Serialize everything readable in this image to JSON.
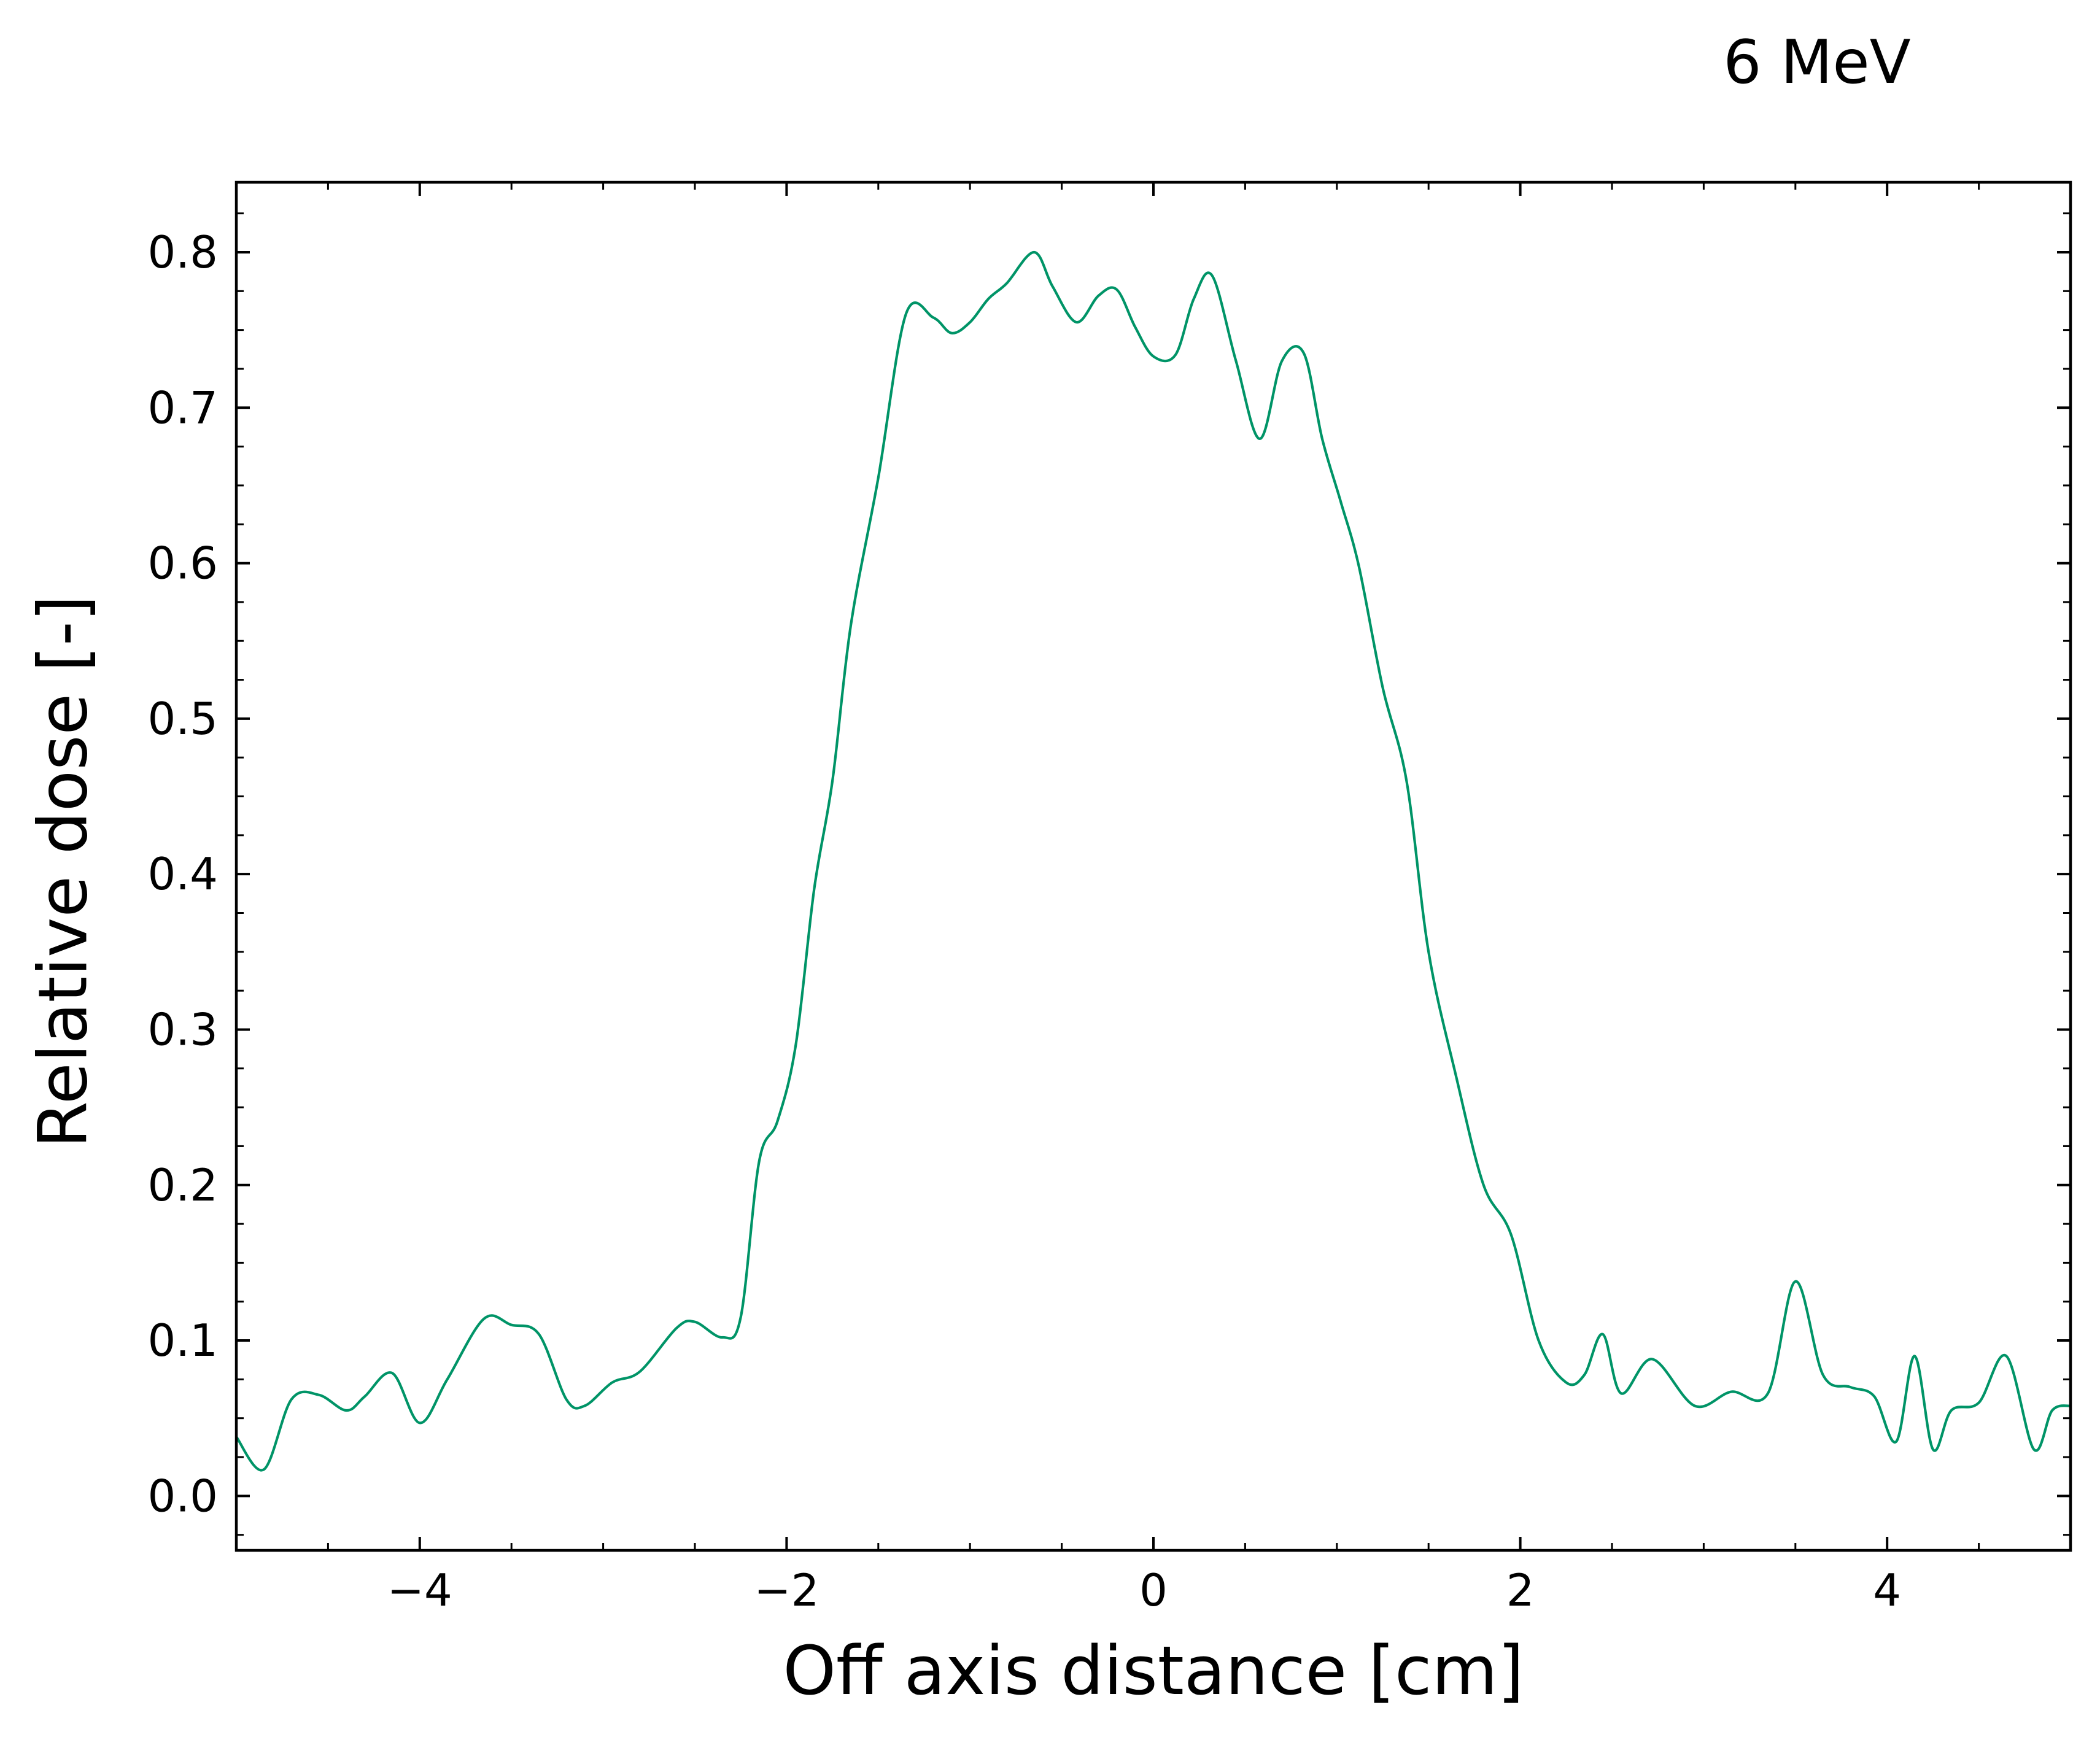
{
  "chart_data": {
    "type": "line",
    "title": "6 MeV",
    "xlabel": "Off axis distance [cm]",
    "ylabel": "Relative dose [-]",
    "xlim": [
      -5,
      5
    ],
    "ylim": [
      -0.035,
      0.845
    ],
    "grid": false,
    "legend": "none",
    "x_ticks": [
      {
        "value": -4,
        "label": "−4"
      },
      {
        "value": -2,
        "label": "−2"
      },
      {
        "value": 0,
        "label": "0"
      },
      {
        "value": 2,
        "label": "2"
      },
      {
        "value": 4,
        "label": "4"
      }
    ],
    "y_ticks": [
      {
        "value": 0.0,
        "label": "0.0"
      },
      {
        "value": 0.1,
        "label": "0.1"
      },
      {
        "value": 0.2,
        "label": "0.2"
      },
      {
        "value": 0.3,
        "label": "0.3"
      },
      {
        "value": 0.4,
        "label": "0.4"
      },
      {
        "value": 0.5,
        "label": "0.5"
      },
      {
        "value": 0.6,
        "label": "0.6"
      },
      {
        "value": 0.7,
        "label": "0.7"
      },
      {
        "value": 0.8,
        "label": "0.8"
      }
    ],
    "x_minor_step": 0.5,
    "y_minor_step": 0.025,
    "series": [
      {
        "color": "#009467",
        "x": [
          -5.0,
          -4.85,
          -4.7,
          -4.55,
          -4.4,
          -4.3,
          -4.15,
          -4.0,
          -3.85,
          -3.65,
          -3.5,
          -3.35,
          -3.2,
          -3.1,
          -2.95,
          -2.8,
          -2.6,
          -2.5,
          -2.35,
          -2.25,
          -2.15,
          -2.05,
          -1.95,
          -1.85,
          -1.75,
          -1.65,
          -1.5,
          -1.35,
          -1.2,
          -1.1,
          -1.0,
          -0.9,
          -0.8,
          -0.65,
          -0.55,
          -0.42,
          -0.3,
          -0.2,
          -0.1,
          0.0,
          0.12,
          0.22,
          0.32,
          0.45,
          0.58,
          0.7,
          0.82,
          0.92,
          1.02,
          1.12,
          1.25,
          1.38,
          1.5,
          1.65,
          1.8,
          1.95,
          2.1,
          2.25,
          2.35,
          2.45,
          2.55,
          2.72,
          2.95,
          3.15,
          3.35,
          3.5,
          3.65,
          3.8,
          3.93,
          4.05,
          4.15,
          4.25,
          4.35,
          4.5,
          4.65,
          4.8,
          4.9,
          5.0
        ],
        "y": [
          0.038,
          0.017,
          0.062,
          0.065,
          0.055,
          0.064,
          0.079,
          0.047,
          0.075,
          0.114,
          0.11,
          0.104,
          0.062,
          0.058,
          0.073,
          0.08,
          0.108,
          0.112,
          0.102,
          0.115,
          0.215,
          0.241,
          0.29,
          0.39,
          0.46,
          0.56,
          0.655,
          0.76,
          0.758,
          0.748,
          0.755,
          0.77,
          0.78,
          0.8,
          0.778,
          0.755,
          0.772,
          0.776,
          0.752,
          0.733,
          0.734,
          0.77,
          0.785,
          0.73,
          0.68,
          0.73,
          0.735,
          0.68,
          0.64,
          0.598,
          0.52,
          0.46,
          0.35,
          0.27,
          0.2,
          0.168,
          0.1,
          0.073,
          0.078,
          0.104,
          0.066,
          0.088,
          0.058,
          0.067,
          0.066,
          0.138,
          0.078,
          0.07,
          0.064,
          0.035,
          0.09,
          0.03,
          0.055,
          0.06,
          0.09,
          0.03,
          0.055,
          0.058
        ]
      }
    ]
  }
}
